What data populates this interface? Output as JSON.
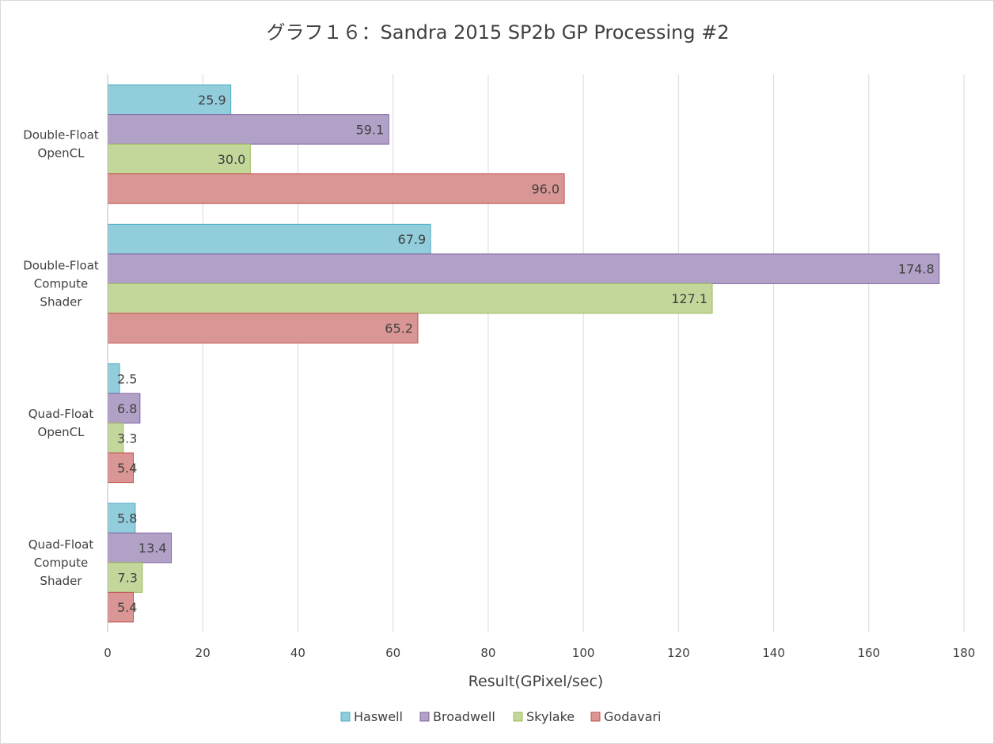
{
  "chart_data": {
    "type": "bar",
    "orientation": "horizontal",
    "title": "グラフ１６：Sandra 2015 SP2b GP Processing #2",
    "xlabel": "Result(GPixel/sec)",
    "ylabel": "",
    "xlim": [
      0,
      180
    ],
    "xticks": [
      "0",
      "20",
      "40",
      "60",
      "80",
      "100",
      "120",
      "140",
      "160",
      "180"
    ],
    "grid": true,
    "legend_position": "bottom",
    "categories": [
      [
        "Double-Float",
        "OpenCL"
      ],
      [
        "Double-Float",
        "Compute",
        "Shader"
      ],
      [
        "Quad-Float",
        "OpenCL"
      ],
      [
        "Quad-Float",
        "Compute",
        "Shader"
      ]
    ],
    "series": [
      {
        "name": "Haswell",
        "color": "#92cddc",
        "stroke": "#4bacc6",
        "values": [
          25.9,
          67.9,
          2.5,
          5.8
        ],
        "labels": [
          "25.9",
          "67.9",
          "2.5",
          "5.8"
        ]
      },
      {
        "name": "Broadwell",
        "color": "#b2a1c7",
        "stroke": "#8064a2",
        "values": [
          59.1,
          174.8,
          6.8,
          13.4
        ],
        "labels": [
          "59.1",
          "174.8",
          "6.8",
          "13.4"
        ]
      },
      {
        "name": "Skylake",
        "color": "#c4d79b",
        "stroke": "#9bbb59",
        "values": [
          30.0,
          127.1,
          3.3,
          7.3
        ],
        "labels": [
          "30.0",
          "127.1",
          "3.3",
          "7.3"
        ]
      },
      {
        "name": "Godavari",
        "color": "#da9694",
        "stroke": "#c0504d",
        "values": [
          96.0,
          65.2,
          5.4,
          5.4
        ],
        "labels": [
          "96.0",
          "65.2",
          "5.4",
          "5.4"
        ]
      }
    ]
  }
}
